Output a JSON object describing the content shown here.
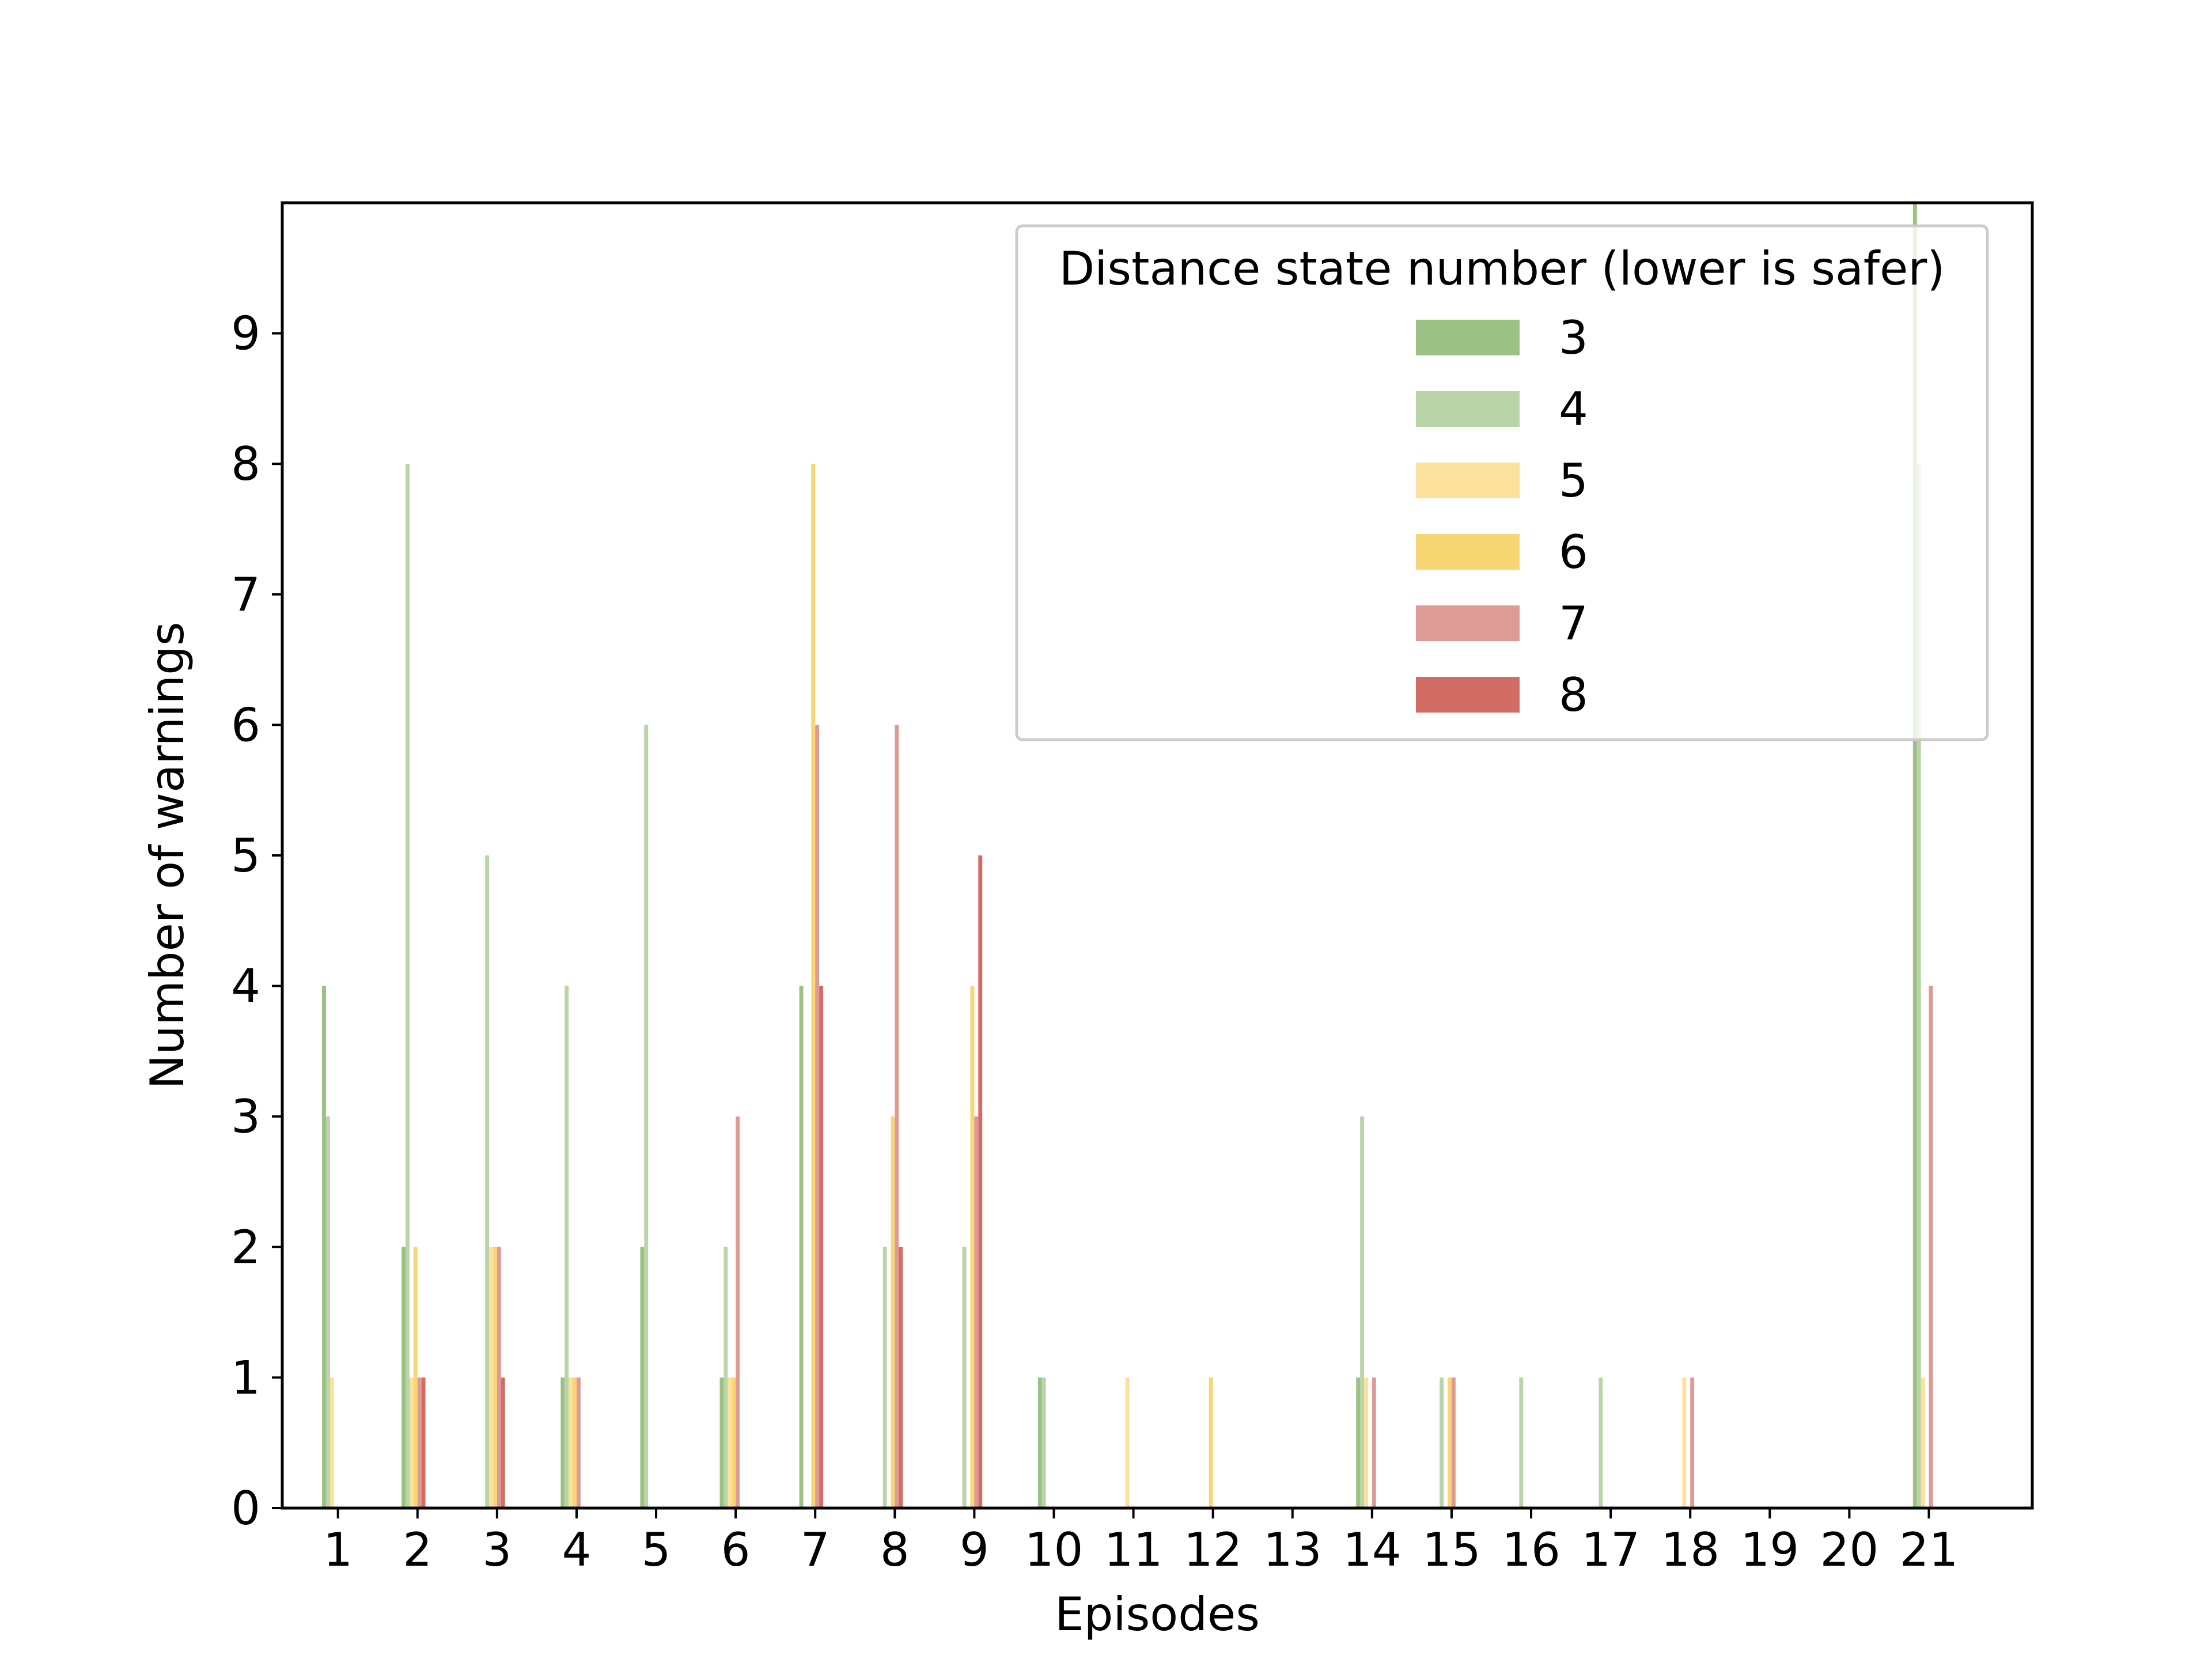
{
  "chart_data": {
    "type": "bar",
    "xlabel": "Episodes",
    "ylabel": "Number of warnings",
    "ylim": [
      0,
      10
    ],
    "yticks": [
      0,
      1,
      2,
      3,
      4,
      5,
      6,
      7,
      8,
      9
    ],
    "categories": [
      "1",
      "2",
      "3",
      "4",
      "5",
      "6",
      "7",
      "8",
      "9",
      "10",
      "11",
      "12",
      "13",
      "14",
      "15",
      "16",
      "17",
      "18",
      "19",
      "20",
      "21"
    ],
    "legend": {
      "title": "Distance state number (lower is safer)",
      "position": "upper right"
    },
    "grid": false,
    "series": [
      {
        "name": "3",
        "color": "#9bc184",
        "values": [
          4,
          2,
          0,
          1,
          2,
          1,
          4,
          0,
          0,
          1,
          0,
          0,
          0,
          1,
          0,
          0,
          0,
          0,
          0,
          0,
          10
        ]
      },
      {
        "name": "4",
        "color": "#b9d4a8",
        "values": [
          3,
          8,
          5,
          4,
          6,
          2,
          0,
          2,
          2,
          1,
          0,
          0,
          0,
          3,
          1,
          1,
          1,
          0,
          0,
          0,
          8
        ]
      },
      {
        "name": "5",
        "color": "#fbe19b",
        "values": [
          1,
          1,
          2,
          1,
          0,
          1,
          0,
          0,
          0,
          0,
          1,
          0,
          0,
          1,
          0,
          0,
          0,
          1,
          0,
          0,
          1
        ]
      },
      {
        "name": "6",
        "color": "#f7d774",
        "values": [
          0,
          2,
          2,
          1,
          0,
          1,
          8,
          3,
          4,
          0,
          0,
          1,
          0,
          0,
          1,
          0,
          0,
          0,
          0,
          0,
          0
        ]
      },
      {
        "name": "7",
        "color": "#de9a97",
        "values": [
          0,
          1,
          2,
          1,
          0,
          3,
          6,
          6,
          3,
          0,
          0,
          0,
          0,
          1,
          1,
          0,
          0,
          1,
          0,
          0,
          4
        ]
      },
      {
        "name": "8",
        "color": "#d46c66",
        "values": [
          0,
          1,
          1,
          0,
          0,
          0,
          4,
          2,
          5,
          0,
          0,
          0,
          0,
          0,
          0,
          0,
          0,
          0,
          0,
          0,
          0
        ]
      }
    ]
  }
}
